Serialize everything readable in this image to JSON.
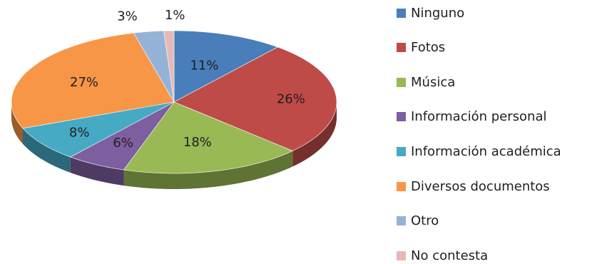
{
  "chart_data": {
    "type": "pie",
    "title": "",
    "legend_position": "right",
    "slices": [
      {
        "label": "Ninguno",
        "value": 11,
        "display": "11%",
        "color": "#4a7ebb"
      },
      {
        "label": "Fotos",
        "value": 26,
        "display": "26%",
        "color": "#be4b48"
      },
      {
        "label": "Música",
        "value": 18,
        "display": "18%",
        "color": "#98b954"
      },
      {
        "label": "Información personal",
        "value": 6,
        "display": "6%",
        "color": "#7d5fa0"
      },
      {
        "label": "Información académica",
        "value": 8,
        "display": "8%",
        "color": "#46aac5"
      },
      {
        "label": "Diversos documentos",
        "value": 27,
        "display": "27%",
        "color": "#f79646"
      },
      {
        "label": "Otro",
        "value": 3,
        "display": "3%",
        "color": "#95b3d7"
      },
      {
        "label": "No contesta",
        "value": 1,
        "display": "1%",
        "color": "#e6b9b8"
      }
    ]
  }
}
